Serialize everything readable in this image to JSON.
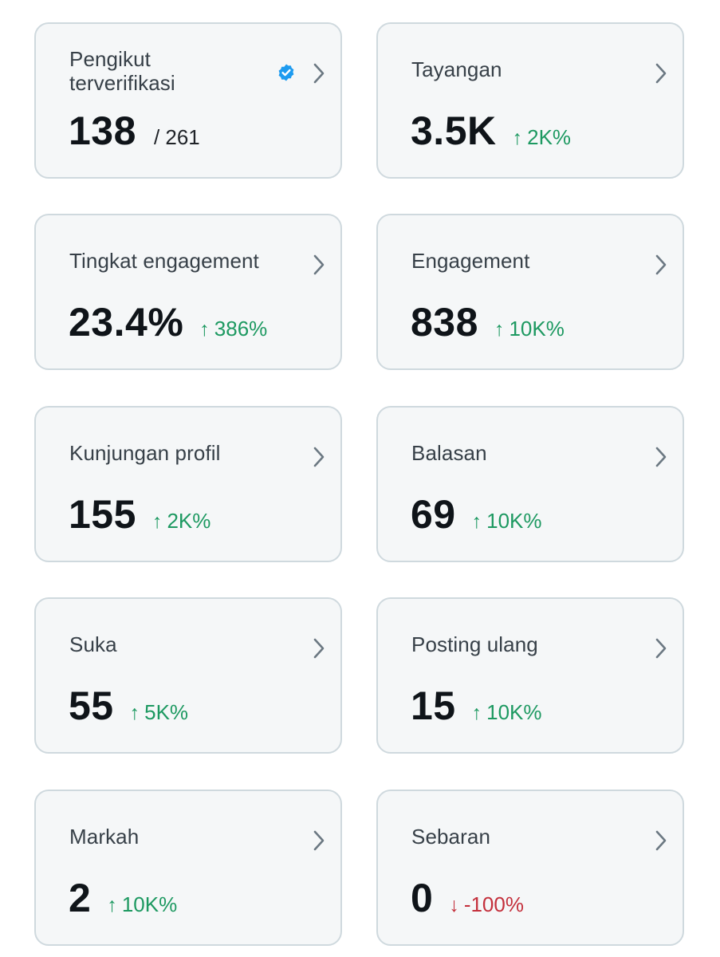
{
  "colors": {
    "card_bg": "#f5f7f8",
    "card_border": "#cfd9de",
    "text_primary": "#0f1419",
    "text_label": "#374048",
    "positive": "#1d9961",
    "negative": "#c4303c",
    "verified_blue": "#1d9bf0"
  },
  "metrics": [
    {
      "label": "Pengikut terverifikasi",
      "value": "138",
      "sub": "/ 261",
      "verified_icon": "verified-badge-icon"
    },
    {
      "label": "Tayangan",
      "value": "3.5K",
      "arrow": "↑",
      "change": "2K%",
      "direction": "up"
    },
    {
      "label": "Tingkat engagement",
      "value": "23.4%",
      "arrow": "↑",
      "change": "386%",
      "direction": "up"
    },
    {
      "label": "Engagement",
      "value": "838",
      "arrow": "↑",
      "change": "10K%",
      "direction": "up"
    },
    {
      "label": "Kunjungan profil",
      "value": "155",
      "arrow": "↑",
      "change": "2K%",
      "direction": "up"
    },
    {
      "label": "Balasan",
      "value": "69",
      "arrow": "↑",
      "change": "10K%",
      "direction": "up"
    },
    {
      "label": "Suka",
      "value": "55",
      "arrow": "↑",
      "change": "5K%",
      "direction": "up"
    },
    {
      "label": "Posting ulang",
      "value": "15",
      "arrow": "↑",
      "change": "10K%",
      "direction": "up"
    },
    {
      "label": "Markah",
      "value": "2",
      "arrow": "↑",
      "change": "10K%",
      "direction": "up"
    },
    {
      "label": "Sebaran",
      "value": "0",
      "arrow": "↓",
      "change": "-100%",
      "direction": "down"
    }
  ]
}
